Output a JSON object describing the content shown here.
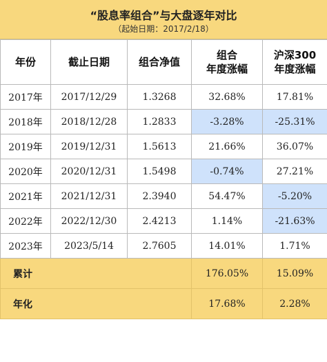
{
  "title": "“股息率组合”与大盘逐年对比",
  "subtitle": "（起始日期：2017/2/18）",
  "headers": {
    "year": "年份",
    "end_date": "截止日期",
    "nav": "组合净值",
    "portfolio_line1": "组合",
    "portfolio_line2": "年度涨幅",
    "index_line1": "沪深300",
    "index_line2": "年度涨幅"
  },
  "rows": [
    {
      "year": "2017年",
      "end_date": "2017/12/29",
      "nav": "1.3268",
      "portfolio": "32.68%",
      "index": "17.81%",
      "hl_portfolio": false,
      "hl_index": false
    },
    {
      "year": "2018年",
      "end_date": "2018/12/28",
      "nav": "1.2833",
      "portfolio": "-3.28%",
      "index": "-25.31%",
      "hl_portfolio": true,
      "hl_index": true
    },
    {
      "year": "2019年",
      "end_date": "2019/12/31",
      "nav": "1.5613",
      "portfolio": "21.66%",
      "index": "36.07%",
      "hl_portfolio": false,
      "hl_index": false
    },
    {
      "year": "2020年",
      "end_date": "2020/12/31",
      "nav": "1.5498",
      "portfolio": "-0.74%",
      "index": "27.21%",
      "hl_portfolio": true,
      "hl_index": false
    },
    {
      "year": "2021年",
      "end_date": "2021/12/31",
      "nav": "2.3940",
      "portfolio": "54.47%",
      "index": "-5.20%",
      "hl_portfolio": false,
      "hl_index": true
    },
    {
      "year": "2022年",
      "end_date": "2022/12/30",
      "nav": "2.4213",
      "portfolio": "1.14%",
      "index": "-21.63%",
      "hl_portfolio": false,
      "hl_index": true
    },
    {
      "year": "2023年",
      "end_date": "2023/5/14",
      "nav": "2.7605",
      "portfolio": "14.01%",
      "index": "1.71%",
      "hl_portfolio": false,
      "hl_index": false
    }
  ],
  "summary": {
    "cumulative_label": "累计",
    "cumulative_portfolio": "176.05%",
    "cumulative_index": "15.09%",
    "annualized_label": "年化",
    "annualized_portfolio": "17.68%",
    "annualized_index": "2.28%"
  },
  "colors": {
    "header_band": "#f8d87e",
    "highlight": "#cfe2fb",
    "border": "#b9b9b9"
  }
}
